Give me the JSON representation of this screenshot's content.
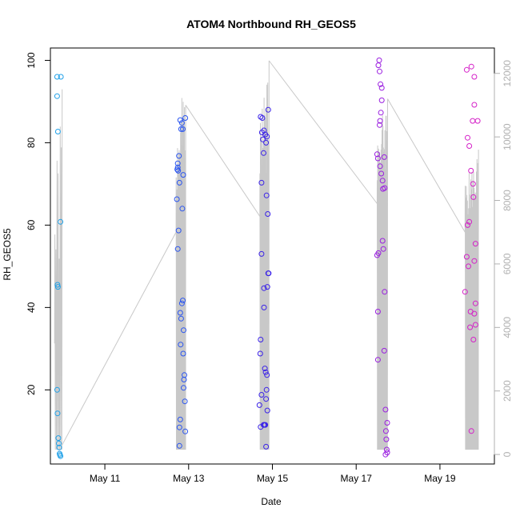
{
  "chart_data": {
    "type": "scatter",
    "title": "ATOM4 Northbound RH_GEOS5",
    "xlabel": "Date",
    "ylabel": "RH_GEOS5",
    "ylabel_right": "",
    "xlim": [
      9.7,
      20.3
    ],
    "ylim": [
      2,
      103
    ],
    "ylim_right": [
      -300,
      12800
    ],
    "x_ticks": [
      {
        "value": 11,
        "label": "May 11"
      },
      {
        "value": 13,
        "label": "May 13"
      },
      {
        "value": 15,
        "label": "May 15"
      },
      {
        "value": 17,
        "label": "May 17"
      },
      {
        "value": 19,
        "label": "May 19"
      }
    ],
    "y_ticks": [
      20,
      40,
      60,
      80,
      100
    ],
    "y_ticks_right": [
      0,
      2000,
      4000,
      6000,
      8000,
      10000,
      12000
    ],
    "grid": false,
    "legend": "none",
    "colors": {
      "flight1": "#1fa0e8",
      "flight2": "#2a55f0",
      "flight3": "#3a22e8",
      "flight4": "#9a1ee0",
      "flight5": "#d520c8",
      "altitude": "#c8c8c8",
      "axis": "#000000",
      "right_axis": "#b0b0b0"
    },
    "series": [
      {
        "color_key": "flight1",
        "points": [
          [
            9.86,
            96.0
          ],
          [
            9.86,
            91.3
          ],
          [
            9.88,
            82.7
          ],
          [
            9.87,
            45.5
          ],
          [
            9.88,
            45.0
          ],
          [
            9.86,
            20.0
          ],
          [
            9.87,
            14.3
          ],
          [
            9.89,
            8.3
          ],
          [
            9.9,
            7.0
          ],
          [
            9.91,
            6.0
          ],
          [
            9.92,
            4.5
          ],
          [
            9.93,
            4.2
          ],
          [
            9.94,
            3.9
          ],
          [
            9.94,
            60.8
          ],
          [
            9.95,
            96.0
          ]
        ]
      },
      {
        "color_key": "flight2",
        "points": [
          [
            12.72,
            66.3
          ],
          [
            12.73,
            73.5
          ],
          [
            12.74,
            74.0
          ],
          [
            12.74,
            75.0
          ],
          [
            12.75,
            73.2
          ],
          [
            12.77,
            76.8
          ],
          [
            12.78,
            70.3
          ],
          [
            12.76,
            58.7
          ],
          [
            12.74,
            54.2
          ],
          [
            12.8,
            85.5
          ],
          [
            12.82,
            83.3
          ],
          [
            12.84,
            84.8
          ],
          [
            12.86,
            83.3
          ],
          [
            12.87,
            72.2
          ],
          [
            12.85,
            64.0
          ],
          [
            12.86,
            41.7
          ],
          [
            12.84,
            41.0
          ],
          [
            12.8,
            38.7
          ],
          [
            12.82,
            37.3
          ],
          [
            12.88,
            34.5
          ],
          [
            12.81,
            31.0
          ],
          [
            12.87,
            28.8
          ],
          [
            12.9,
            23.6
          ],
          [
            12.89,
            22.5
          ],
          [
            12.88,
            20.5
          ],
          [
            12.91,
            17.2
          ],
          [
            12.8,
            12.8
          ],
          [
            12.78,
            10.9
          ],
          [
            12.92,
            9.9
          ],
          [
            12.78,
            6.4
          ],
          [
            12.92,
            86.0
          ]
        ]
      },
      {
        "color_key": "flight3",
        "points": [
          [
            14.72,
            86.3
          ],
          [
            14.76,
            86.0
          ],
          [
            14.75,
            82.5
          ],
          [
            14.77,
            80.8
          ],
          [
            14.8,
            83.0
          ],
          [
            14.79,
            77.5
          ],
          [
            14.83,
            82.0
          ],
          [
            14.85,
            80.0
          ],
          [
            14.87,
            81.5
          ],
          [
            14.9,
            88.0
          ],
          [
            14.74,
            70.3
          ],
          [
            14.86,
            67.2
          ],
          [
            14.89,
            62.7
          ],
          [
            14.74,
            53.0
          ],
          [
            14.9,
            48.3
          ],
          [
            14.91,
            48.3
          ],
          [
            14.8,
            44.7
          ],
          [
            14.88,
            45.0
          ],
          [
            14.8,
            40.0
          ],
          [
            14.72,
            32.2
          ],
          [
            14.71,
            28.8
          ],
          [
            14.82,
            25.2
          ],
          [
            14.84,
            24.3
          ],
          [
            14.87,
            23.6
          ],
          [
            14.86,
            20.0
          ],
          [
            14.85,
            17.8
          ],
          [
            14.88,
            15.0
          ],
          [
            14.69,
            16.3
          ],
          [
            14.74,
            18.8
          ],
          [
            14.72,
            11.0
          ],
          [
            14.79,
            11.5
          ],
          [
            14.81,
            11.5
          ],
          [
            14.83,
            11.5
          ],
          [
            14.85,
            6.2
          ]
        ]
      },
      {
        "color_key": "flight4",
        "points": [
          [
            17.55,
            100.0
          ],
          [
            17.56,
            97.3
          ],
          [
            17.53,
            98.8
          ],
          [
            17.61,
            93.3
          ],
          [
            17.58,
            94.2
          ],
          [
            17.61,
            90.3
          ],
          [
            17.59,
            87.3
          ],
          [
            17.57,
            85.3
          ],
          [
            17.56,
            84.3
          ],
          [
            17.5,
            77.2
          ],
          [
            17.52,
            76.2
          ],
          [
            17.67,
            76.5
          ],
          [
            17.57,
            74.3
          ],
          [
            17.6,
            72.5
          ],
          [
            17.63,
            70.8
          ],
          [
            17.64,
            68.8
          ],
          [
            17.68,
            69.0
          ],
          [
            17.53,
            53.2
          ],
          [
            17.5,
            52.7
          ],
          [
            17.63,
            56.2
          ],
          [
            17.65,
            54.2
          ],
          [
            17.68,
            43.8
          ],
          [
            17.52,
            39.0
          ],
          [
            17.67,
            29.5
          ],
          [
            17.52,
            27.3
          ],
          [
            17.7,
            15.2
          ],
          [
            17.74,
            12.0
          ],
          [
            17.71,
            10.0
          ],
          [
            17.72,
            8.0
          ],
          [
            17.73,
            5.5
          ],
          [
            17.74,
            4.8
          ],
          [
            17.7,
            4.3
          ]
        ]
      },
      {
        "color_key": "flight5",
        "points": [
          [
            19.64,
            97.7
          ],
          [
            19.75,
            98.5
          ],
          [
            19.82,
            96.0
          ],
          [
            19.82,
            89.2
          ],
          [
            19.78,
            85.3
          ],
          [
            19.9,
            85.3
          ],
          [
            19.66,
            81.2
          ],
          [
            19.7,
            79.2
          ],
          [
            19.74,
            73.2
          ],
          [
            19.79,
            70.0
          ],
          [
            19.8,
            66.8
          ],
          [
            19.7,
            60.8
          ],
          [
            19.66,
            60.0
          ],
          [
            19.85,
            55.5
          ],
          [
            19.64,
            52.3
          ],
          [
            19.82,
            51.3
          ],
          [
            19.68,
            50.0
          ],
          [
            19.6,
            43.8
          ],
          [
            19.85,
            41.0
          ],
          [
            19.73,
            39.0
          ],
          [
            19.82,
            38.5
          ],
          [
            19.85,
            35.8
          ],
          [
            19.72,
            35.2
          ],
          [
            19.8,
            32.2
          ],
          [
            19.75,
            10.0
          ]
        ]
      }
    ],
    "altitude_segments": [
      {
        "t0": 9.8,
        "t1": 9.98,
        "seed": 1,
        "start": 3500,
        "end": 11500,
        "cycles": 7,
        "max": 11500
      },
      {
        "t0": 12.7,
        "t1": 12.93,
        "seed": 2,
        "start": 7000,
        "end": 11000,
        "cycles": 22,
        "max": 12000
      },
      {
        "t0": 14.7,
        "t1": 14.92,
        "seed": 3,
        "start": 7500,
        "end": 12400,
        "cycles": 20,
        "max": 12400
      },
      {
        "t0": 17.5,
        "t1": 17.75,
        "seed": 4,
        "start": 7900,
        "end": 11200,
        "cycles": 22,
        "max": 11500
      },
      {
        "t0": 19.6,
        "t1": 19.92,
        "seed": 5,
        "start": 7000,
        "end": 9600,
        "cycles": 24,
        "max": 9600
      }
    ],
    "altitude_transits": [
      [
        [
          9.98,
          300
        ],
        [
          12.7,
          7000
        ]
      ],
      [
        [
          12.93,
          11000
        ],
        [
          14.7,
          7500
        ]
      ],
      [
        [
          14.92,
          12400
        ],
        [
          17.5,
          7900
        ]
      ],
      [
        [
          17.75,
          11200
        ],
        [
          19.6,
          7000
        ]
      ]
    ]
  }
}
